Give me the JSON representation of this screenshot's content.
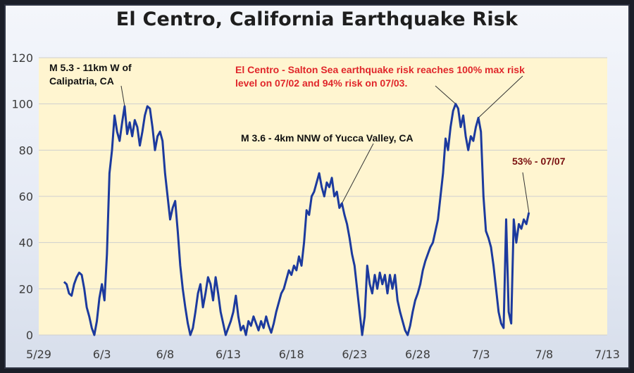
{
  "colors": {
    "plot_background": "#fff5d0",
    "series_line": "#1c3a9e",
    "gridline": "#cfcfcf",
    "annotation_red": "#e0262a",
    "annotation_dark_red": "#7a1010",
    "annotation_black": "#111111"
  },
  "chart_data": {
    "type": "line",
    "title": "El Centro, California Earthquake Risk",
    "xlabel": "",
    "ylabel": "",
    "x_tick_labels": [
      "5/29",
      "6/3",
      "6/8",
      "6/13",
      "6/18",
      "6/23",
      "6/28",
      "7/3",
      "7/8",
      "7/13"
    ],
    "x_tick_days": [
      0,
      5,
      10,
      15,
      20,
      25,
      30,
      35,
      40,
      45
    ],
    "y_ticks": [
      0,
      20,
      40,
      60,
      80,
      100,
      120
    ],
    "xlim": [
      0,
      45
    ],
    "ylim": [
      0,
      120
    ],
    "grid": "horizontal",
    "legend": "none",
    "series": [
      {
        "values": [
          [
            2.0,
            23
          ],
          [
            2.2,
            22
          ],
          [
            2.4,
            18
          ],
          [
            2.6,
            17
          ],
          [
            2.8,
            22
          ],
          [
            3.0,
            25
          ],
          [
            3.2,
            27
          ],
          [
            3.4,
            26
          ],
          [
            3.6,
            20
          ],
          [
            3.8,
            12
          ],
          [
            4.0,
            8
          ],
          [
            4.2,
            3
          ],
          [
            4.4,
            0
          ],
          [
            4.6,
            6
          ],
          [
            4.8,
            16
          ],
          [
            5.0,
            22
          ],
          [
            5.2,
            15
          ],
          [
            5.4,
            35
          ],
          [
            5.6,
            70
          ],
          [
            5.8,
            80
          ],
          [
            6.0,
            95
          ],
          [
            6.2,
            88
          ],
          [
            6.4,
            84
          ],
          [
            6.6,
            92
          ],
          [
            6.8,
            99
          ],
          [
            7.0,
            87
          ],
          [
            7.2,
            92
          ],
          [
            7.4,
            86
          ],
          [
            7.6,
            93
          ],
          [
            7.8,
            90
          ],
          [
            8.0,
            82
          ],
          [
            8.2,
            88
          ],
          [
            8.4,
            95
          ],
          [
            8.6,
            99
          ],
          [
            8.8,
            98
          ],
          [
            9.0,
            90
          ],
          [
            9.2,
            80
          ],
          [
            9.4,
            86
          ],
          [
            9.6,
            88
          ],
          [
            9.8,
            84
          ],
          [
            10.0,
            70
          ],
          [
            10.2,
            60
          ],
          [
            10.4,
            50
          ],
          [
            10.6,
            55
          ],
          [
            10.8,
            58
          ],
          [
            11.0,
            45
          ],
          [
            11.2,
            30
          ],
          [
            11.4,
            20
          ],
          [
            11.6,
            12
          ],
          [
            11.8,
            5
          ],
          [
            12.0,
            0
          ],
          [
            12.2,
            3
          ],
          [
            12.4,
            10
          ],
          [
            12.6,
            18
          ],
          [
            12.8,
            22
          ],
          [
            13.0,
            12
          ],
          [
            13.2,
            18
          ],
          [
            13.4,
            25
          ],
          [
            13.6,
            22
          ],
          [
            13.8,
            15
          ],
          [
            14.0,
            25
          ],
          [
            14.2,
            18
          ],
          [
            14.4,
            10
          ],
          [
            14.6,
            5
          ],
          [
            14.8,
            0
          ],
          [
            15.0,
            3
          ],
          [
            15.2,
            6
          ],
          [
            15.4,
            10
          ],
          [
            15.6,
            17
          ],
          [
            15.8,
            8
          ],
          [
            16.0,
            2
          ],
          [
            16.2,
            4
          ],
          [
            16.4,
            0
          ],
          [
            16.6,
            6
          ],
          [
            16.8,
            4
          ],
          [
            17.0,
            8
          ],
          [
            17.2,
            5
          ],
          [
            17.4,
            2
          ],
          [
            17.6,
            6
          ],
          [
            17.8,
            3
          ],
          [
            18.0,
            8
          ],
          [
            18.2,
            4
          ],
          [
            18.4,
            1
          ],
          [
            18.6,
            5
          ],
          [
            18.8,
            10
          ],
          [
            19.0,
            14
          ],
          [
            19.2,
            18
          ],
          [
            19.4,
            20
          ],
          [
            19.6,
            24
          ],
          [
            19.8,
            28
          ],
          [
            20.0,
            26
          ],
          [
            20.2,
            30
          ],
          [
            20.4,
            28
          ],
          [
            20.6,
            34
          ],
          [
            20.8,
            30
          ],
          [
            21.0,
            40
          ],
          [
            21.2,
            54
          ],
          [
            21.4,
            52
          ],
          [
            21.6,
            60
          ],
          [
            21.8,
            62
          ],
          [
            22.0,
            66
          ],
          [
            22.2,
            70
          ],
          [
            22.4,
            64
          ],
          [
            22.6,
            60
          ],
          [
            22.8,
            66
          ],
          [
            23.0,
            64
          ],
          [
            23.2,
            68
          ],
          [
            23.4,
            60
          ],
          [
            23.6,
            62
          ],
          [
            23.8,
            55
          ],
          [
            24.0,
            57
          ],
          [
            24.2,
            52
          ],
          [
            24.4,
            48
          ],
          [
            24.6,
            42
          ],
          [
            24.8,
            35
          ],
          [
            25.0,
            30
          ],
          [
            25.2,
            20
          ],
          [
            25.4,
            10
          ],
          [
            25.6,
            0
          ],
          [
            25.8,
            8
          ],
          [
            26.0,
            30
          ],
          [
            26.2,
            22
          ],
          [
            26.4,
            18
          ],
          [
            26.6,
            26
          ],
          [
            26.8,
            20
          ],
          [
            27.0,
            27
          ],
          [
            27.2,
            22
          ],
          [
            27.4,
            26
          ],
          [
            27.6,
            18
          ],
          [
            27.8,
            26
          ],
          [
            28.0,
            20
          ],
          [
            28.2,
            26
          ],
          [
            28.4,
            15
          ],
          [
            28.6,
            10
          ],
          [
            28.8,
            6
          ],
          [
            29.0,
            2
          ],
          [
            29.2,
            0
          ],
          [
            29.4,
            4
          ],
          [
            29.6,
            10
          ],
          [
            29.8,
            15
          ],
          [
            30.0,
            18
          ],
          [
            30.2,
            22
          ],
          [
            30.4,
            28
          ],
          [
            30.6,
            32
          ],
          [
            30.8,
            35
          ],
          [
            31.0,
            38
          ],
          [
            31.2,
            40
          ],
          [
            31.4,
            45
          ],
          [
            31.6,
            50
          ],
          [
            31.8,
            60
          ],
          [
            32.0,
            70
          ],
          [
            32.2,
            85
          ],
          [
            32.4,
            80
          ],
          [
            32.6,
            90
          ],
          [
            32.8,
            97
          ],
          [
            33.0,
            100
          ],
          [
            33.2,
            98
          ],
          [
            33.4,
            90
          ],
          [
            33.6,
            95
          ],
          [
            33.8,
            86
          ],
          [
            34.0,
            80
          ],
          [
            34.2,
            86
          ],
          [
            34.4,
            84
          ],
          [
            34.6,
            90
          ],
          [
            34.8,
            94
          ],
          [
            35.0,
            88
          ],
          [
            35.2,
            60
          ],
          [
            35.4,
            45
          ],
          [
            35.6,
            42
          ],
          [
            35.8,
            38
          ],
          [
            36.0,
            30
          ],
          [
            36.2,
            20
          ],
          [
            36.4,
            10
          ],
          [
            36.6,
            5
          ],
          [
            36.8,
            3
          ],
          [
            37.0,
            50
          ],
          [
            37.2,
            10
          ],
          [
            37.4,
            5
          ],
          [
            37.6,
            50
          ],
          [
            37.8,
            40
          ],
          [
            38.0,
            48
          ],
          [
            38.2,
            46
          ],
          [
            38.4,
            50
          ],
          [
            38.6,
            48
          ],
          [
            38.8,
            53
          ]
        ]
      }
    ],
    "annotations": [
      {
        "text_lines": [
          "M 5.3 - 11km W of",
          "Calipatria, CA"
        ],
        "style": "black"
      },
      {
        "text_lines": [
          "El Centro - Salton Sea earthquake risk reaches 100% max risk",
          "level on 07/02 and 94% risk on 07/03."
        ],
        "style": "red"
      },
      {
        "text_lines": [
          "M 3.6 - 4km NNW of Yucca Valley, CA"
        ],
        "style": "black"
      },
      {
        "text_lines": [
          "53% - 07/07"
        ],
        "style": "dark"
      }
    ]
  }
}
